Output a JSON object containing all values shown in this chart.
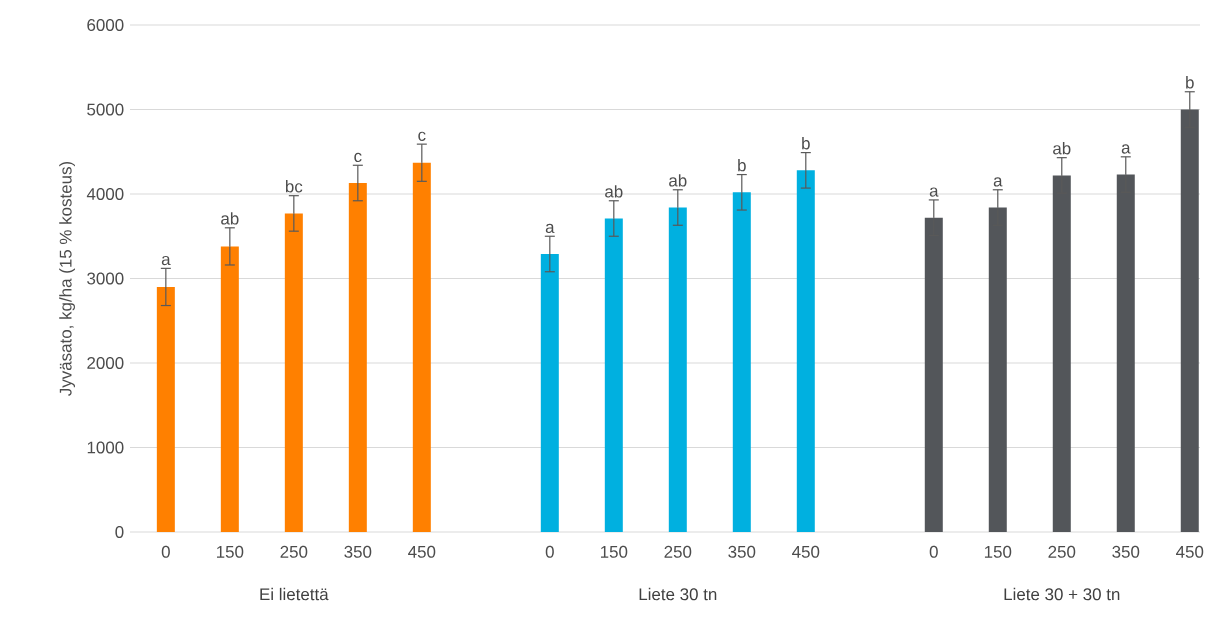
{
  "chart_data": {
    "type": "bar",
    "ylabel": "Jyväsato, kg/ha (15 % kosteus)",
    "categories": [
      "0",
      "150",
      "250",
      "350",
      "450",
      null,
      "0",
      "150",
      "250",
      "350",
      "450",
      null,
      "0",
      "150",
      "250",
      "350",
      "450"
    ],
    "values": [
      2900,
      3380,
      3770,
      4130,
      4370,
      null,
      3290,
      3710,
      3840,
      4020,
      4280,
      null,
      3720,
      3840,
      4220,
      4230,
      5000
    ],
    "errors": [
      220,
      220,
      210,
      210,
      220,
      null,
      210,
      210,
      210,
      210,
      210,
      null,
      210,
      210,
      210,
      210,
      210
    ],
    "value_labels": [
      "a",
      "ab",
      "bc",
      "c",
      "c",
      null,
      "a",
      "ab",
      "ab",
      "b",
      "b",
      null,
      "a",
      "a",
      "ab",
      "a",
      "b"
    ],
    "colors": [
      "#ff8000",
      "#ff8000",
      "#ff8000",
      "#ff8000",
      "#ff8000",
      null,
      "#00b0e0",
      "#00b0e0",
      "#00b0e0",
      "#00b0e0",
      "#00b0e0",
      null,
      "#53565a",
      "#53565a",
      "#53565a",
      "#53565a",
      "#53565a"
    ],
    "annotations": [
      "Ei lietettä",
      "Liete 30 tn",
      "Liete 30 + 30 tn"
    ],
    "ylim": [
      0,
      6000
    ],
    "yticks": [
      0,
      1000,
      2000,
      3000,
      4000,
      5000,
      6000
    ],
    "grid": "y"
  }
}
